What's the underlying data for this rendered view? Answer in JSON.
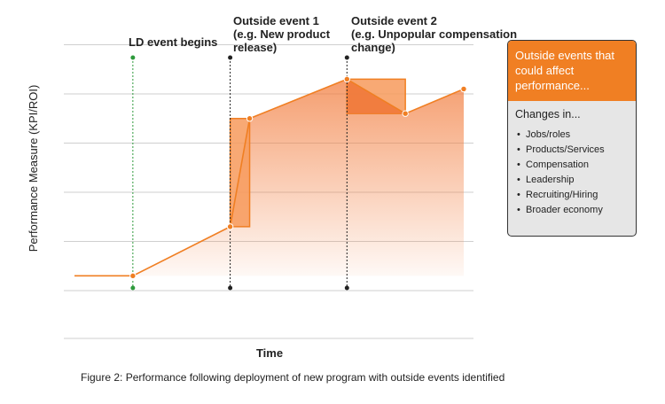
{
  "axes": {
    "ylabel": "Performance Measure (KPI/ROI)",
    "xlabel": "Time"
  },
  "events": [
    {
      "label_lines": [
        "LD event begins"
      ],
      "color": "#2e9a3c"
    },
    {
      "label_lines": [
        "Outside event 1",
        "(e.g. New product",
        "release)"
      ],
      "color": "#222222"
    },
    {
      "label_lines": [
        "Outside event 2",
        "(e.g. Unpopular compensation",
        "change)"
      ],
      "color": "#222222"
    }
  ],
  "colors": {
    "line": "#f07f23",
    "fill": "#f5a46e",
    "box": "#f79a5c",
    "box_dark": "#ef7a3c"
  },
  "chart_data": {
    "type": "line",
    "title": "",
    "xlabel": "Time",
    "ylabel": "Performance Measure (KPI/ROI)",
    "x": [
      0,
      1.2,
      3.2,
      3.6,
      5.6,
      6.8,
      8.0
    ],
    "values": [
      0.3,
      0.3,
      1.3,
      3.5,
      4.3,
      3.6,
      4.1
    ],
    "ylim": [
      0,
      5
    ],
    "grid": true,
    "event_x": [
      1.2,
      3.2,
      5.6
    ],
    "impact_boxes": [
      {
        "x_from": 3.2,
        "x_to": 3.6,
        "y_from": 1.3,
        "y_to": 3.5
      },
      {
        "x_from": 5.6,
        "x_to": 6.8,
        "y_from": 3.6,
        "y_to": 4.3
      }
    ]
  },
  "sidebar": {
    "header": "Outside events that could affect performance...",
    "subtitle": "Changes in...",
    "items": [
      "Jobs/roles",
      "Products/Services",
      "Compensation",
      "Leadership",
      "Recruiting/Hiring",
      "Broader economy"
    ]
  },
  "caption": "Figure 2: Performance following deployment of new program with outside events identified"
}
